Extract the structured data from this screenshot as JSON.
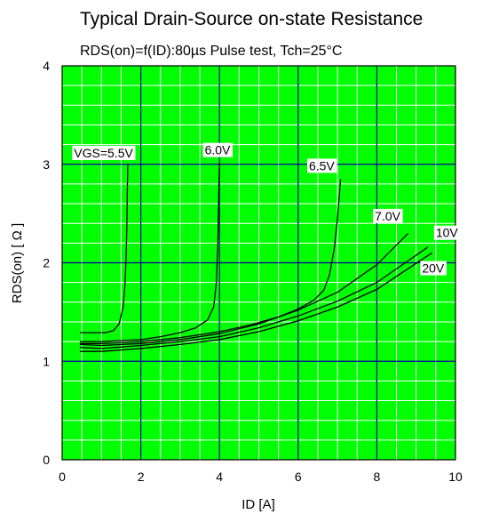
{
  "chart_data": {
    "type": "line",
    "title": "Typical Drain-Source on-state Resistance",
    "subtitle": "RDS(on)=f(ID):80µs Pulse test, Tch=25°C",
    "xlabel": "ID [A]",
    "ylabel": "RDS(on) [ Ω ]",
    "xlim": [
      0,
      10
    ],
    "ylim": [
      0,
      4
    ],
    "x_ticks": [
      "0",
      "2",
      "4",
      "6",
      "8",
      "10"
    ],
    "y_ticks": [
      "0",
      "1",
      "2",
      "3",
      "4"
    ],
    "grid": true,
    "legend": "none",
    "colors": {
      "background": "#00ff00",
      "grid_minor": "#ffffff",
      "grid_major": "#0000a0",
      "line": "#000000"
    },
    "series": [
      {
        "name": "VGS=5.5V",
        "x": [
          0.45,
          0.8,
          1.1,
          1.3,
          1.45,
          1.55,
          1.6,
          1.63,
          1.65,
          1.66,
          1.67
        ],
        "y": [
          1.29,
          1.29,
          1.29,
          1.31,
          1.38,
          1.55,
          1.8,
          2.1,
          2.5,
          2.8,
          3.0
        ]
      },
      {
        "name": "6.0V",
        "x": [
          0.45,
          1.0,
          1.5,
          2.0,
          2.5,
          3.0,
          3.4,
          3.7,
          3.85,
          3.92,
          3.96,
          3.98,
          4.0
        ],
        "y": [
          1.2,
          1.2,
          1.21,
          1.22,
          1.25,
          1.29,
          1.34,
          1.42,
          1.55,
          1.8,
          2.2,
          2.65,
          3.02
        ]
      },
      {
        "name": "6.5V",
        "x": [
          0.45,
          1.0,
          2.0,
          3.0,
          4.0,
          4.8,
          5.5,
          6.0,
          6.4,
          6.65,
          6.8,
          6.92,
          7.0,
          7.05,
          7.08
        ],
        "y": [
          1.18,
          1.18,
          1.2,
          1.24,
          1.3,
          1.37,
          1.45,
          1.53,
          1.62,
          1.72,
          1.88,
          2.15,
          2.45,
          2.7,
          2.85
        ]
      },
      {
        "name": "7.0V",
        "x": [
          0.45,
          1.0,
          2.0,
          3.0,
          4.0,
          5.0,
          6.0,
          7.0,
          8.0,
          8.8
        ],
        "y": [
          1.17,
          1.16,
          1.18,
          1.22,
          1.28,
          1.38,
          1.52,
          1.7,
          1.98,
          2.3
        ]
      },
      {
        "name": "10V",
        "x": [
          0.45,
          1.0,
          2.0,
          3.0,
          4.0,
          5.0,
          6.0,
          7.0,
          8.0,
          9.3
        ],
        "y": [
          1.14,
          1.13,
          1.16,
          1.2,
          1.25,
          1.34,
          1.46,
          1.61,
          1.8,
          2.16
        ]
      },
      {
        "name": "20V",
        "x": [
          0.45,
          1.0,
          2.0,
          3.0,
          4.0,
          5.0,
          6.0,
          7.0,
          8.0,
          9.4
        ],
        "y": [
          1.1,
          1.1,
          1.13,
          1.17,
          1.22,
          1.3,
          1.41,
          1.55,
          1.73,
          2.1
        ]
      }
    ]
  }
}
